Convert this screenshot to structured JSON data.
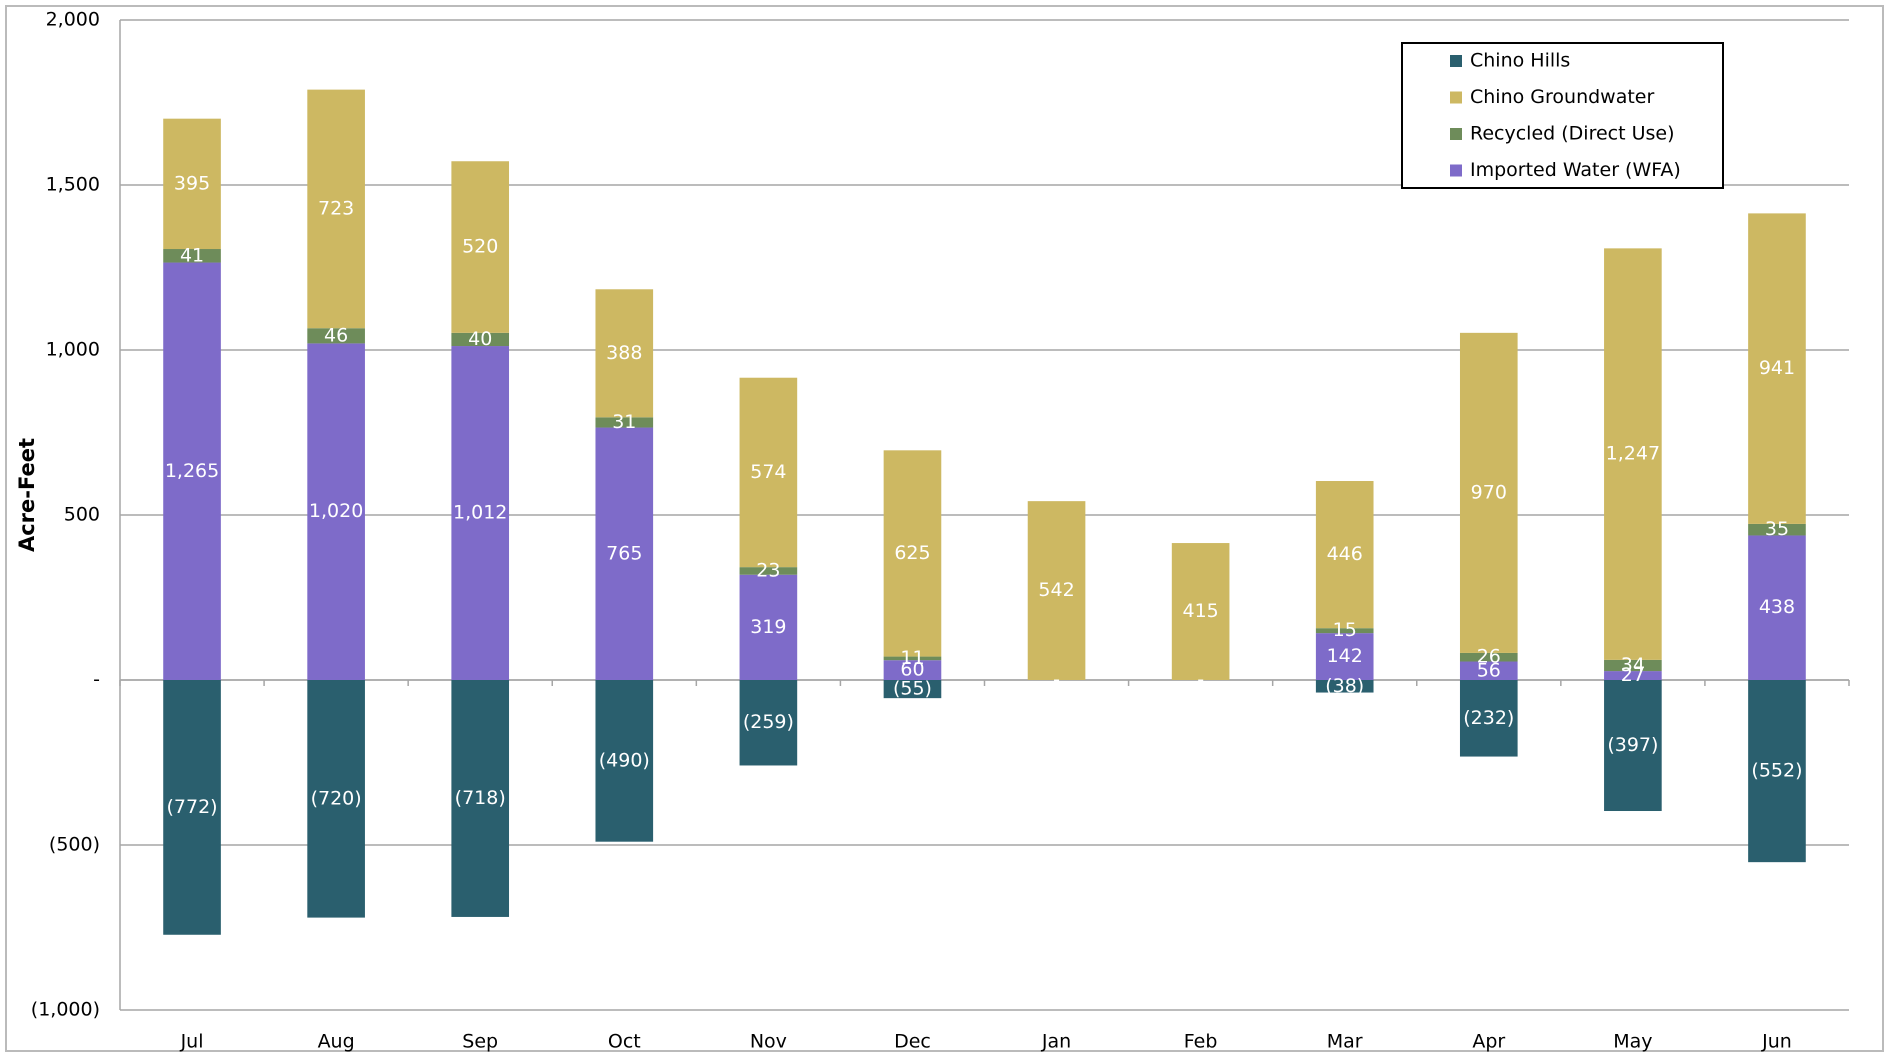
{
  "chart_data": {
    "type": "bar",
    "stacked": true,
    "y_label": "Acre-Feet",
    "categories": [
      "Jul",
      "Aug",
      "Sep",
      "Oct",
      "Nov",
      "Dec",
      "Jan",
      "Feb",
      "Mar",
      "Apr",
      "May",
      "Jun"
    ],
    "series": [
      {
        "name": "Chino Hills",
        "color": "#2a5f6e",
        "values": [
          -772,
          -720,
          -718,
          -490,
          -259,
          -55,
          null,
          null,
          -38,
          -232,
          -397,
          -552
        ],
        "value_labels": [
          "(772)",
          "(720)",
          "(718)",
          "(490)",
          "(259)",
          "(55)",
          null,
          null,
          "(38)",
          "(232)",
          "(397)",
          "(552)"
        ]
      },
      {
        "name": "Chino Groundwater",
        "color": "#cdb862",
        "values": [
          395,
          723,
          520,
          388,
          574,
          625,
          542,
          415,
          446,
          970,
          1247,
          941
        ],
        "value_labels": [
          "395",
          "723",
          "520",
          "388",
          "574",
          "625",
          "542",
          "415",
          "446",
          "970",
          "1,247",
          "941"
        ]
      },
      {
        "name": "Recycled (Direct Use)",
        "color": "#6e8c5a",
        "values": [
          41,
          46,
          40,
          31,
          23,
          11,
          null,
          null,
          15,
          26,
          34,
          35
        ]
      },
      {
        "name": "Imported Water (WFA)",
        "color": "#7e6bc9",
        "values": [
          1265,
          1020,
          1012,
          765,
          319,
          60,
          0,
          0,
          142,
          56,
          27,
          438
        ],
        "value_labels": [
          "1,265",
          "1,020",
          "1,012",
          "765",
          "319",
          "60",
          "-",
          "-",
          "142",
          "56",
          "27",
          "438"
        ]
      }
    ],
    "ylim": [
      -1000,
      2000
    ],
    "yticks": [
      {
        "value": -1000,
        "label": "(1,000)"
      },
      {
        "value": -500,
        "label": "(500)"
      },
      {
        "value": 0,
        "label": "-"
      },
      500,
      {
        "value": 1000,
        "label": "1,000"
      },
      {
        "value": 1500,
        "label": "1,500"
      },
      {
        "value": 2000,
        "label": "2,000"
      }
    ],
    "grid": true,
    "legend": "upper right"
  }
}
